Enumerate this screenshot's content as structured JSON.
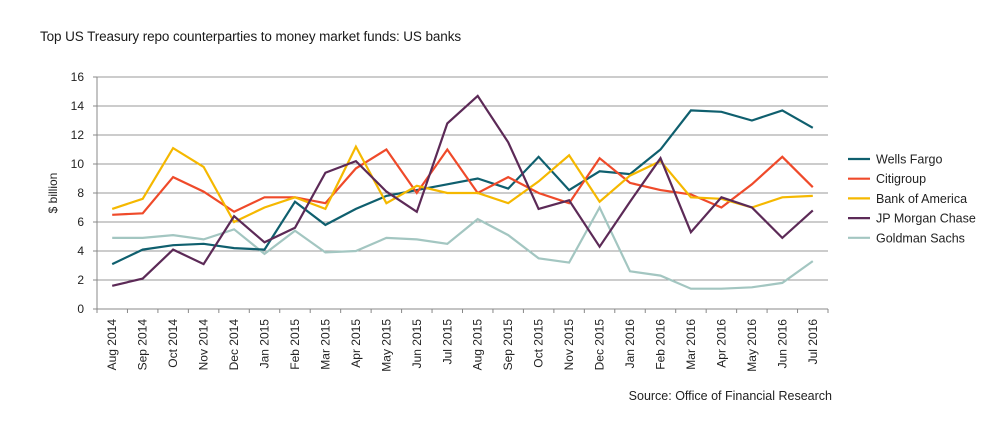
{
  "chart_data": {
    "type": "line",
    "title": "Top US Treasury repo counterparties to money market funds: US banks",
    "xlabel": "",
    "ylabel": "$ billion",
    "ylim": [
      0,
      16
    ],
    "yticks": [
      "0",
      "2",
      "4",
      "6",
      "8",
      "10",
      "12",
      "14",
      "16"
    ],
    "grid": true,
    "legend_position": "right",
    "source": "Source: Office of Financial Research",
    "categories": [
      "Aug 2014",
      "Sep 2014",
      "Oct 2014",
      "Nov 2014",
      "Dec 2014",
      "Jan 2015",
      "Feb 2015",
      "Mar 2015",
      "Apr 2015",
      "May 2015",
      "Jun 2015",
      "Jul 2015",
      "Aug 2015",
      "Sep 2015",
      "Oct 2015",
      "Nov 2015",
      "Dec 2015",
      "Jan 2016",
      "Feb 2016",
      "Mar 2016",
      "Apr 2016",
      "May 2016",
      "Jun 2016",
      "Jul 2016"
    ],
    "series": [
      {
        "name": "Wells Fargo",
        "color": "#0f5f6e",
        "values": [
          3.1,
          4.1,
          4.4,
          4.5,
          4.2,
          4.1,
          7.4,
          5.8,
          6.9,
          7.8,
          8.2,
          8.6,
          9.0,
          8.3,
          10.5,
          8.2,
          9.5,
          9.3,
          11.0,
          13.7,
          13.6,
          13.0,
          13.7,
          12.5
        ]
      },
      {
        "name": "Citigroup",
        "color": "#ef4a2a",
        "values": [
          6.5,
          6.6,
          9.1,
          8.1,
          6.7,
          7.7,
          7.7,
          7.3,
          9.7,
          11.0,
          8.0,
          11.0,
          8.0,
          9.1,
          8.0,
          7.3,
          10.4,
          8.7,
          8.2,
          7.9,
          7.0,
          8.6,
          10.5,
          8.4
        ]
      },
      {
        "name": "Bank of America",
        "color": "#f5b800",
        "values": [
          6.9,
          7.6,
          11.1,
          9.8,
          6.0,
          7.0,
          7.7,
          6.9,
          11.2,
          7.3,
          8.5,
          8.0,
          8.0,
          7.3,
          8.8,
          10.6,
          7.4,
          9.2,
          10.2,
          7.7,
          7.6,
          7.0,
          7.7,
          7.8
        ]
      },
      {
        "name": "JP Morgan Chase",
        "color": "#5c2a57",
        "values": [
          1.6,
          2.1,
          4.1,
          3.1,
          6.4,
          4.6,
          5.6,
          9.4,
          10.2,
          8.1,
          6.7,
          12.8,
          14.7,
          11.5,
          6.9,
          7.5,
          4.3,
          7.4,
          10.4,
          5.3,
          7.7,
          7.0,
          4.9,
          6.8
        ]
      },
      {
        "name": "Goldman Sachs",
        "color": "#a3c6c1",
        "values": [
          4.9,
          4.9,
          5.1,
          4.8,
          5.5,
          3.8,
          5.4,
          3.9,
          4.0,
          4.9,
          4.8,
          4.5,
          6.2,
          5.1,
          3.5,
          3.2,
          7.0,
          2.6,
          2.3,
          1.4,
          1.4,
          1.5,
          1.8,
          3.3
        ]
      }
    ]
  }
}
